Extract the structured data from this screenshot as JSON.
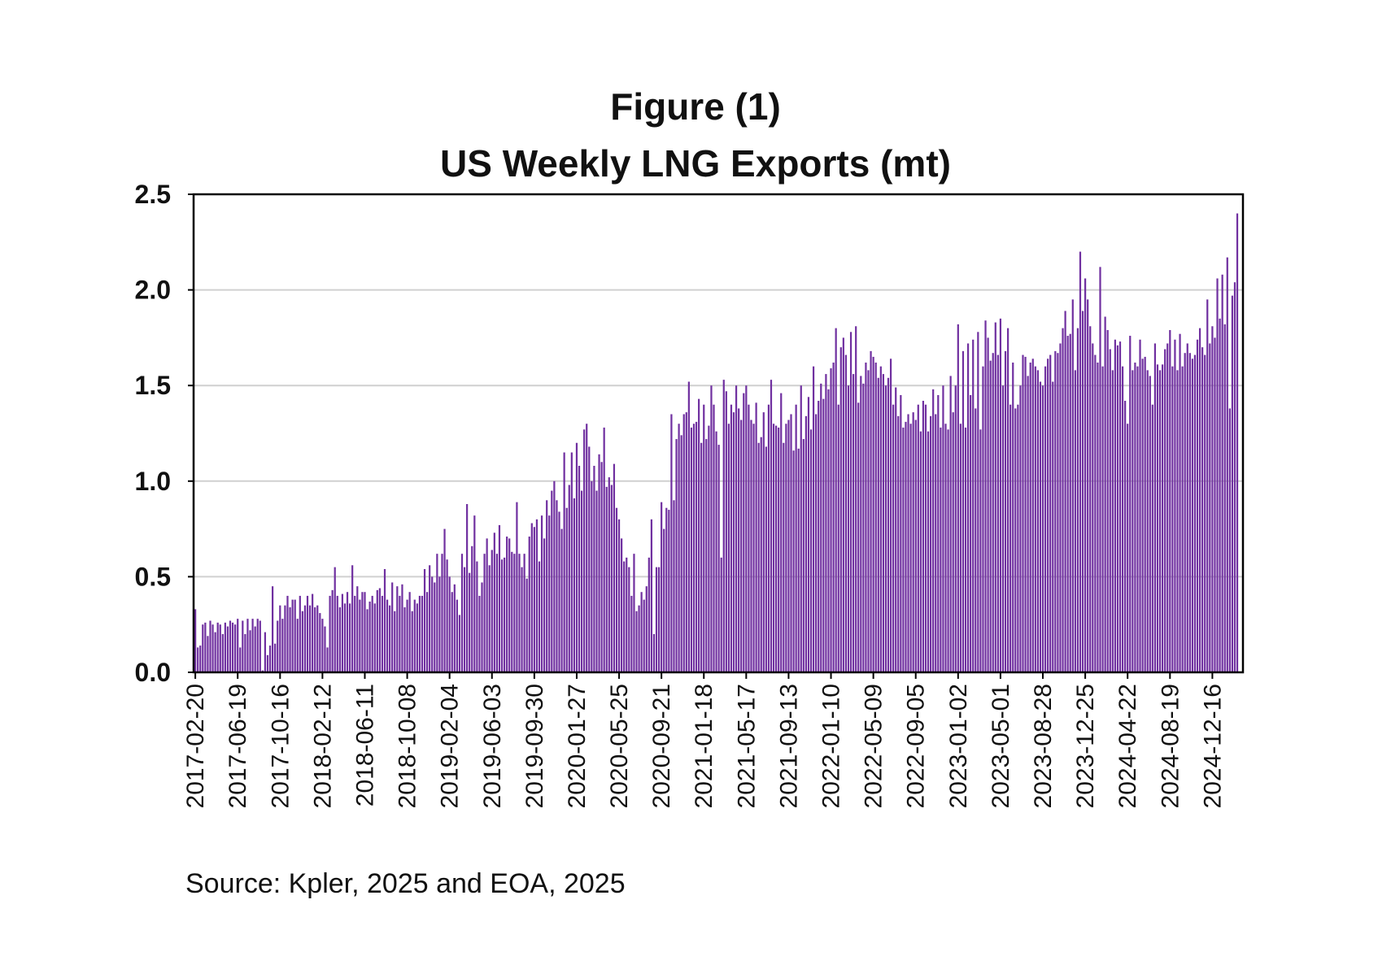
{
  "title_line1": "Figure (1)",
  "title_line2": "US Weekly LNG Exports (mt)",
  "source": "Source: Kpler, 2025 and  EOA, 2025",
  "colors": {
    "bar": "#7030A0",
    "highlight": "#FF0000",
    "grid": "#D0D0D0",
    "axis": "#000000"
  },
  "chart_data": {
    "type": "bar",
    "title": "Figure (1) US Weekly LNG Exports (mt)",
    "xlabel": "",
    "ylabel": "",
    "ylim": [
      0,
      2.5
    ],
    "yticks": [
      "0.0",
      "0.5",
      "1.0",
      "1.5",
      "2.0",
      "2.5"
    ],
    "grid": true,
    "x_start": "2017-02-20",
    "x_interval": "weekly",
    "xtick_labels": [
      "2017-02-20",
      "2017-06-19",
      "2017-10-16",
      "2018-02-12",
      "2018-06-11",
      "2018-10-08",
      "2019-02-04",
      "2019-06-03",
      "2019-09-30",
      "2020-01-27",
      "2020-05-25",
      "2020-09-21",
      "2021-01-18",
      "2021-05-17",
      "2021-09-13",
      "2022-01-10",
      "2022-05-09",
      "2022-09-05",
      "2023-01-02",
      "2023-05-01",
      "2023-08-28",
      "2023-12-25",
      "2024-04-22",
      "2024-08-19",
      "2024-12-16"
    ],
    "segments": [
      {
        "start": "2017-02-20",
        "end": "2017-06-12",
        "values": [
          0.33,
          0.13,
          0.14,
          0.25,
          0.26,
          0.19,
          0.27,
          0.25,
          0.21,
          0.26,
          0.25,
          0.2,
          0.26,
          0.24,
          0.27,
          0.26,
          0.25
        ]
      },
      {
        "start": "2017-06-19",
        "end": "2017-10-09",
        "values": [
          0.28,
          0.13,
          0.27,
          0.2,
          0.28,
          0.22,
          0.28,
          0.24,
          0.28,
          0.27,
          0.01,
          0.21,
          0.09,
          0.14,
          0.45,
          0.15,
          0.27
        ]
      },
      {
        "start": "2017-10-16",
        "end": "2018-02-05",
        "values": [
          0.35,
          0.28,
          0.35,
          0.4,
          0.34,
          0.38,
          0.38,
          0.28,
          0.4,
          0.32,
          0.35,
          0.4,
          0.35,
          0.41,
          0.34,
          0.35,
          0.31
        ]
      },
      {
        "start": "2018-02-12",
        "end": "2018-06-04",
        "values": [
          0.28,
          0.24,
          0.13,
          0.4,
          0.43,
          0.55,
          0.4,
          0.34,
          0.41,
          0.36,
          0.42,
          0.36,
          0.56,
          0.4,
          0.45,
          0.38,
          0.42
        ]
      },
      {
        "start": "2018-06-11",
        "end": "2018-10-01",
        "values": [
          0.42,
          0.33,
          0.37,
          0.4,
          0.36,
          0.43,
          0.44,
          0.4,
          0.54,
          0.38,
          0.35,
          0.47,
          0.32,
          0.45,
          0.4,
          0.46,
          0.34
        ]
      },
      {
        "start": "2018-10-08",
        "end": "2019-01-28",
        "values": [
          0.38,
          0.42,
          0.32,
          0.38,
          0.36,
          0.4,
          0.4,
          0.54,
          0.42,
          0.56,
          0.5,
          0.47,
          0.62,
          0.5,
          0.62,
          0.75,
          0.59
        ]
      },
      {
        "start": "2019-02-04",
        "end": "2019-05-27",
        "values": [
          0.5,
          0.42,
          0.46,
          0.38,
          0.3,
          0.62,
          0.55,
          0.88,
          0.52,
          0.66,
          0.82,
          0.58,
          0.4,
          0.47,
          0.62,
          0.7,
          0.56
        ]
      },
      {
        "start": "2019-06-03",
        "end": "2019-09-23",
        "values": [
          0.64,
          0.73,
          0.62,
          0.77,
          0.59,
          0.6,
          0.71,
          0.7,
          0.63,
          0.62,
          0.89,
          0.62,
          0.55,
          0.62,
          0.49,
          0.71,
          0.78
        ]
      },
      {
        "start": "2019-09-30",
        "end": "2020-01-20",
        "values": [
          0.76,
          0.8,
          0.58,
          0.82,
          0.7,
          0.9,
          0.82,
          0.95,
          1.0,
          0.9,
          0.84,
          0.75,
          1.15,
          0.86,
          0.98,
          1.15,
          0.91
        ]
      },
      {
        "start": "2020-01-27",
        "end": "2020-05-18",
        "values": [
          1.2,
          1.08,
          0.95,
          1.27,
          1.3,
          1.18,
          1.0,
          1.08,
          0.95,
          1.14,
          1.1,
          1.28,
          0.97,
          1.02,
          0.98,
          1.09,
          0.86
        ]
      },
      {
        "start": "2020-05-25",
        "end": "2020-09-14",
        "values": [
          0.8,
          0.7,
          0.58,
          0.6,
          0.55,
          0.4,
          0.62,
          0.32,
          0.35,
          0.42,
          0.38,
          0.45,
          0.6,
          0.8,
          0.2,
          0.55,
          0.55
        ]
      },
      {
        "start": "2020-09-21",
        "end": "2021-01-11",
        "values": [
          0.89,
          0.75,
          0.86,
          0.85,
          1.35,
          0.9,
          1.22,
          1.3,
          1.24,
          1.35,
          1.36,
          1.52,
          1.28,
          1.3,
          1.31,
          1.43,
          1.2
        ]
      },
      {
        "start": "2021-01-18",
        "end": "2021-05-10",
        "values": [
          1.4,
          1.22,
          1.29,
          1.5,
          1.4,
          1.26,
          1.19,
          0.6,
          1.53,
          1.47,
          1.3,
          1.4,
          1.36,
          1.5,
          1.38,
          1.32,
          1.46
        ]
      },
      {
        "start": "2021-05-17",
        "end": "2021-09-06",
        "values": [
          1.5,
          1.4,
          1.32,
          1.3,
          1.41,
          1.2,
          1.23,
          1.36,
          1.18,
          1.4,
          1.53,
          1.3,
          1.29,
          1.28,
          1.46,
          1.2,
          1.3
        ]
      },
      {
        "start": "2021-09-13",
        "end": "2022-01-03",
        "values": [
          1.32,
          1.35,
          1.16,
          1.4,
          1.17,
          1.5,
          1.22,
          1.34,
          1.44,
          1.27,
          1.6,
          1.35,
          1.42,
          1.51,
          1.43,
          1.56,
          1.48
        ]
      },
      {
        "start": "2022-01-10",
        "end": "2022-05-02",
        "values": [
          1.59,
          1.62,
          1.8,
          1.4,
          1.7,
          1.75,
          1.66,
          1.5,
          1.78,
          1.56,
          1.81,
          1.41,
          1.55,
          1.51,
          1.62,
          1.58,
          1.68
        ]
      },
      {
        "start": "2022-05-09",
        "end": "2022-08-29",
        "values": [
          1.65,
          1.62,
          1.54,
          1.6,
          1.56,
          1.5,
          1.54,
          1.64,
          1.4,
          1.49,
          1.34,
          1.45,
          1.28,
          1.31,
          1.35,
          1.3,
          1.36
        ]
      },
      {
        "start": "2022-09-05",
        "end": "2022-12-26",
        "values": [
          1.32,
          1.4,
          1.26,
          1.42,
          1.4,
          1.26,
          1.34,
          1.48,
          1.35,
          1.45,
          1.28,
          1.5,
          1.3,
          1.27,
          1.55,
          1.36,
          1.5
        ]
      },
      {
        "start": "2023-01-02",
        "end": "2023-04-24",
        "values": [
          1.82,
          1.3,
          1.68,
          1.28,
          1.72,
          1.45,
          1.74,
          1.38,
          1.78,
          1.27,
          1.6,
          1.84,
          1.75,
          1.63,
          1.67,
          1.83,
          1.66
        ]
      },
      {
        "start": "2023-05-01",
        "end": "2023-08-21",
        "values": [
          1.85,
          1.5,
          1.68,
          1.8,
          1.4,
          1.62,
          1.38,
          1.4,
          1.5,
          1.66,
          1.65,
          1.55,
          1.62,
          1.64,
          1.6,
          1.58,
          1.52
        ]
      },
      {
        "start": "2023-08-28",
        "end": "2023-12-18",
        "values": [
          1.5,
          1.6,
          1.64,
          1.66,
          1.52,
          1.68,
          1.67,
          1.72,
          1.8,
          1.89,
          1.76,
          1.77,
          1.95,
          1.58,
          1.8,
          2.2,
          1.89
        ]
      },
      {
        "start": "2023-12-25",
        "end": "2024-04-15",
        "values": [
          2.06,
          1.95,
          1.81,
          1.72,
          1.66,
          1.62,
          2.12,
          1.6,
          1.86,
          1.79,
          1.69,
          1.58,
          1.74,
          1.71,
          1.73,
          1.6,
          1.42
        ]
      },
      {
        "start": "2024-04-22",
        "end": "2024-08-12",
        "values": [
          1.3,
          1.76,
          1.58,
          1.62,
          1.6,
          1.74,
          1.64,
          1.65,
          1.58,
          1.55,
          1.4,
          1.72,
          1.61,
          1.58,
          1.61,
          1.69,
          1.72
        ]
      },
      {
        "start": "2024-08-19",
        "end": "2024-12-09",
        "values": [
          1.79,
          1.6,
          1.74,
          1.58,
          1.77,
          1.6,
          1.67,
          1.72,
          1.67,
          1.64,
          1.66,
          1.74,
          1.8,
          1.7,
          1.66,
          1.95,
          1.72
        ]
      },
      {
        "start": "2024-12-16",
        "end": "2025-03-17",
        "values": [
          1.81,
          1.75,
          2.06,
          1.85,
          2.08,
          1.82,
          2.17,
          1.38,
          1.97,
          2.04,
          2.4
        ]
      }
    ],
    "highlight": {
      "x": "2025-03-17",
      "value": 2.4
    }
  }
}
